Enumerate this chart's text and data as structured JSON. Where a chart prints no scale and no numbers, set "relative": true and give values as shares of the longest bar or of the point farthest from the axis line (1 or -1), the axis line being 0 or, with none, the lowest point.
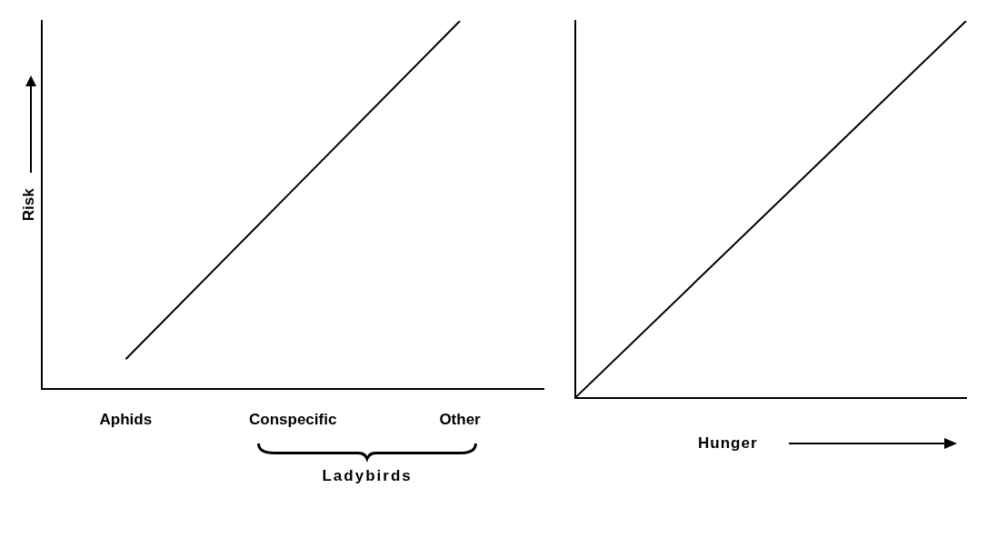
{
  "chart_data": [
    {
      "type": "line",
      "relative": true,
      "ylabel": "Risk",
      "categories": [
        "Aphids",
        "Conspecific",
        "Other"
      ],
      "values": [
        0.08,
        0.54,
        1
      ],
      "color": "#000000",
      "marker": "none",
      "grid": false,
      "legend": false,
      "annotations": [
        "Ladybirds"
      ]
    },
    {
      "type": "line",
      "relative": true,
      "xlabel": "Hunger",
      "categories": [
        null,
        null
      ],
      "values": [
        0,
        1
      ],
      "color": "#000000",
      "marker": "none",
      "grid": false,
      "legend": false
    }
  ]
}
